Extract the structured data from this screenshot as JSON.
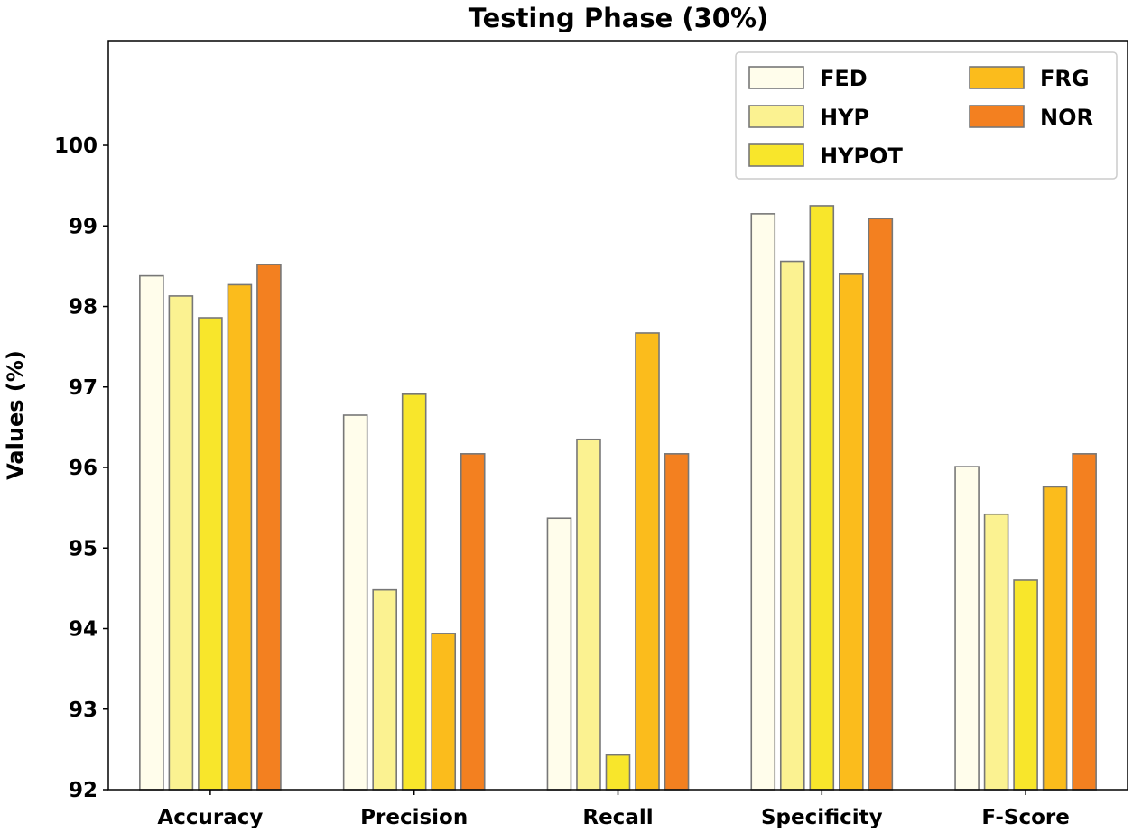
{
  "chart_data": {
    "type": "bar",
    "title": "Testing Phase (30%)",
    "xlabel": "",
    "ylabel": "Values (%)",
    "ylim": [
      92,
      101.3
    ],
    "yticks": [
      92,
      93,
      94,
      95,
      96,
      97,
      98,
      99,
      100
    ],
    "grid": false,
    "legend_position": "top-right",
    "categories": [
      "Accuracy",
      "Precision",
      "Recall",
      "Specificity",
      "F-Score"
    ],
    "series": [
      {
        "name": "FED",
        "color": "#fffdeb",
        "values": [
          98.38,
          96.65,
          95.37,
          99.15,
          96.01
        ]
      },
      {
        "name": "HYP",
        "color": "#fbf291",
        "values": [
          98.13,
          94.48,
          96.35,
          98.56,
          95.42
        ]
      },
      {
        "name": "HYPOT",
        "color": "#f8e62b",
        "values": [
          97.86,
          96.91,
          92.43,
          99.25,
          94.6
        ]
      },
      {
        "name": "FRG",
        "color": "#fbbc1c",
        "values": [
          98.27,
          93.94,
          97.67,
          98.4,
          95.76
        ]
      },
      {
        "name": "NOR",
        "color": "#f38020",
        "values": [
          98.52,
          96.17,
          96.17,
          99.09,
          96.17
        ]
      }
    ]
  }
}
